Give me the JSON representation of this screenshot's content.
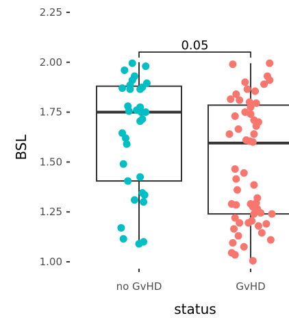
{
  "chart_data": {
    "type": "boxplot",
    "xlabel": "status",
    "ylabel": "BSL",
    "categories": [
      "no GvHD",
      "GvHD"
    ],
    "y_ticks": [
      "1.00",
      "1.25",
      "1.50",
      "1.75",
      "2.00",
      "2.25"
    ],
    "ylim": [
      0.96,
      2.25
    ],
    "grid": false,
    "legend": "none",
    "comparison": {
      "groups": [
        "no GvHD",
        "GvHD"
      ],
      "label": "0.05"
    },
    "series": [
      {
        "category": "no GvHD",
        "color": "#00BFC4",
        "box": {
          "whisker_low": 1.085,
          "q1": 1.405,
          "median": 1.75,
          "q3": 1.88,
          "whisker_high": 2.0
        },
        "points": [
          {
            "x": 0.94,
            "y": 1.995
          },
          {
            "x": 1.06,
            "y": 1.98
          },
          {
            "x": 0.87,
            "y": 1.96
          },
          {
            "x": 0.96,
            "y": 1.93
          },
          {
            "x": 0.94,
            "y": 1.91
          },
          {
            "x": 1.07,
            "y": 1.895
          },
          {
            "x": 0.92,
            "y": 1.885
          },
          {
            "x": 0.85,
            "y": 1.87
          },
          {
            "x": 0.92,
            "y": 1.865
          },
          {
            "x": 1.03,
            "y": 1.875
          },
          {
            "x": 1.01,
            "y": 1.865
          },
          {
            "x": 0.9,
            "y": 1.78
          },
          {
            "x": 1.01,
            "y": 1.775
          },
          {
            "x": 0.98,
            "y": 1.76
          },
          {
            "x": 0.91,
            "y": 1.755
          },
          {
            "x": 1.02,
            "y": 1.75
          },
          {
            "x": 1.06,
            "y": 1.75
          },
          {
            "x": 1.03,
            "y": 1.715
          },
          {
            "x": 1.01,
            "y": 1.705
          },
          {
            "x": 0.85,
            "y": 1.645
          },
          {
            "x": 0.88,
            "y": 1.62
          },
          {
            "x": 0.89,
            "y": 1.59
          },
          {
            "x": 0.86,
            "y": 1.49
          },
          {
            "x": 1.01,
            "y": 1.425
          },
          {
            "x": 0.9,
            "y": 1.405
          },
          {
            "x": 1.03,
            "y": 1.345
          },
          {
            "x": 1.05,
            "y": 1.335
          },
          {
            "x": 0.96,
            "y": 1.31
          },
          {
            "x": 1.04,
            "y": 1.3
          },
          {
            "x": 0.84,
            "y": 1.17
          },
          {
            "x": 0.86,
            "y": 1.115
          },
          {
            "x": 1.04,
            "y": 1.1
          },
          {
            "x": 1.0,
            "y": 1.09
          }
        ]
      },
      {
        "category": "GvHD",
        "color": "#F8766D",
        "box": {
          "whisker_low": 1.005,
          "q1": 1.24,
          "median": 1.595,
          "q3": 1.785,
          "whisker_high": 1.995
        },
        "points": [
          {
            "x": 1.84,
            "y": 1.99
          },
          {
            "x": 2.17,
            "y": 1.995
          },
          {
            "x": 2.15,
            "y": 1.93
          },
          {
            "x": 2.17,
            "y": 1.91
          },
          {
            "x": 1.95,
            "y": 1.9
          },
          {
            "x": 2.12,
            "y": 1.89
          },
          {
            "x": 1.97,
            "y": 1.865
          },
          {
            "x": 2.04,
            "y": 1.855
          },
          {
            "x": 1.87,
            "y": 1.84
          },
          {
            "x": 1.82,
            "y": 1.815
          },
          {
            "x": 1.9,
            "y": 1.81
          },
          {
            "x": 1.99,
            "y": 1.8
          },
          {
            "x": 2.05,
            "y": 1.795
          },
          {
            "x": 2.0,
            "y": 1.775
          },
          {
            "x": 1.95,
            "y": 1.75
          },
          {
            "x": 2.0,
            "y": 1.74
          },
          {
            "x": 1.86,
            "y": 1.73
          },
          {
            "x": 2.03,
            "y": 1.71
          },
          {
            "x": 2.07,
            "y": 1.7
          },
          {
            "x": 2.05,
            "y": 1.68
          },
          {
            "x": 1.89,
            "y": 1.665
          },
          {
            "x": 1.81,
            "y": 1.64
          },
          {
            "x": 2.03,
            "y": 1.64
          },
          {
            "x": 1.96,
            "y": 1.61
          },
          {
            "x": 1.99,
            "y": 1.605
          },
          {
            "x": 2.02,
            "y": 1.6
          },
          {
            "x": 1.86,
            "y": 1.465
          },
          {
            "x": 1.94,
            "y": 1.445
          },
          {
            "x": 1.87,
            "y": 1.415
          },
          {
            "x": 2.03,
            "y": 1.385
          },
          {
            "x": 1.88,
            "y": 1.36
          },
          {
            "x": 2.06,
            "y": 1.32
          },
          {
            "x": 1.83,
            "y": 1.29
          },
          {
            "x": 1.87,
            "y": 1.285
          },
          {
            "x": 2.0,
            "y": 1.29
          },
          {
            "x": 2.05,
            "y": 1.295
          },
          {
            "x": 2.02,
            "y": 1.275
          },
          {
            "x": 2.06,
            "y": 1.265
          },
          {
            "x": 2.03,
            "y": 1.24
          },
          {
            "x": 2.09,
            "y": 1.245
          },
          {
            "x": 2.19,
            "y": 1.24
          },
          {
            "x": 1.86,
            "y": 1.22
          },
          {
            "x": 2.01,
            "y": 1.205
          },
          {
            "x": 1.98,
            "y": 1.195
          },
          {
            "x": 1.9,
            "y": 1.195
          },
          {
            "x": 2.07,
            "y": 1.18
          },
          {
            "x": 2.14,
            "y": 1.19
          },
          {
            "x": 1.85,
            "y": 1.165
          },
          {
            "x": 2.1,
            "y": 1.145
          },
          {
            "x": 1.89,
            "y": 1.13
          },
          {
            "x": 1.84,
            "y": 1.095
          },
          {
            "x": 2.18,
            "y": 1.11
          },
          {
            "x": 1.94,
            "y": 1.075
          },
          {
            "x": 1.83,
            "y": 1.045
          },
          {
            "x": 1.86,
            "y": 1.035
          },
          {
            "x": 2.02,
            "y": 1.005
          }
        ]
      }
    ]
  }
}
